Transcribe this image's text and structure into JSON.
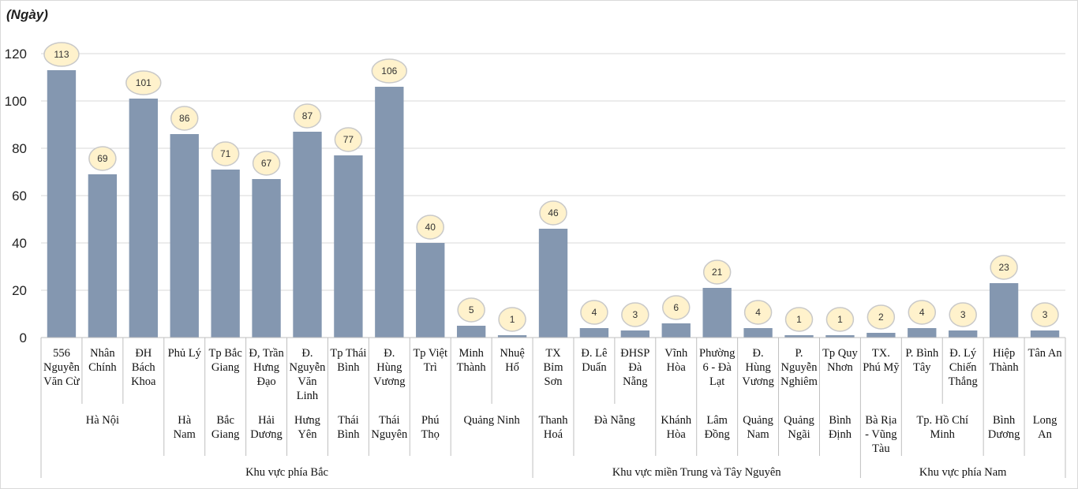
{
  "chart_data": {
    "type": "bar",
    "unit_label": "(Ngày)",
    "ylim": [
      0,
      120
    ],
    "yticks": [
      0,
      20,
      40,
      60,
      80,
      100,
      120
    ],
    "grid": true,
    "bar_color": "#8497b0",
    "label_bubble_fill": "#fff2cc",
    "label_bubble_stroke": "#c9c9c9",
    "categories": [
      [
        "556",
        "Nguyễn",
        "Văn Cừ"
      ],
      [
        "Nhân",
        "Chính"
      ],
      [
        "ĐH",
        "Bách",
        "Khoa"
      ],
      [
        "Phủ Lý"
      ],
      [
        "Tp Bắc",
        "Giang"
      ],
      [
        "Đ, Trần",
        "Hưng",
        "Đạo"
      ],
      [
        "Đ.",
        "Nguyễn",
        "Văn",
        "Linh"
      ],
      [
        "Tp Thái",
        "Bình"
      ],
      [
        "Đ.",
        "Hùng",
        "Vương"
      ],
      [
        "Tp Việt",
        "Trì"
      ],
      [
        "Minh",
        "Thành"
      ],
      [
        "Nhuệ",
        "Hổ"
      ],
      [
        "TX",
        "Bỉm",
        "Sơn"
      ],
      [
        "Đ. Lê",
        "Duẩn"
      ],
      [
        "ĐHSP",
        "Đà",
        "Nẵng"
      ],
      [
        "Vĩnh",
        "Hòa"
      ],
      [
        "Phường",
        "6 - Đà",
        "Lạt"
      ],
      [
        "Đ.",
        "Hùng",
        "Vương"
      ],
      [
        "P.",
        "Nguyễn",
        "Nghiêm"
      ],
      [
        "Tp Quy",
        "Nhơn"
      ],
      [
        "TX.",
        "Phú Mỹ"
      ],
      [
        "P. Bình",
        "Tây"
      ],
      [
        "Đ. Lý",
        "Chiến",
        "Thắng"
      ],
      [
        "Hiệp",
        "Thành"
      ],
      [
        "Tân An"
      ]
    ],
    "values": [
      113,
      69,
      101,
      86,
      71,
      67,
      87,
      77,
      106,
      40,
      5,
      1,
      46,
      4,
      3,
      6,
      21,
      4,
      1,
      1,
      2,
      4,
      3,
      23,
      3
    ],
    "provinces": [
      {
        "name": [
          "Hà Nội"
        ],
        "start": 0,
        "end": 2
      },
      {
        "name": [
          "Hà",
          "Nam"
        ],
        "start": 3,
        "end": 3
      },
      {
        "name": [
          "Bắc",
          "Giang"
        ],
        "start": 4,
        "end": 4
      },
      {
        "name": [
          "Hải",
          "Dương"
        ],
        "start": 5,
        "end": 5
      },
      {
        "name": [
          "Hưng",
          "Yên"
        ],
        "start": 6,
        "end": 6
      },
      {
        "name": [
          "Thái",
          "Bình"
        ],
        "start": 7,
        "end": 7
      },
      {
        "name": [
          "Thái",
          "Nguyên"
        ],
        "start": 8,
        "end": 8
      },
      {
        "name": [
          "Phú",
          "Thọ"
        ],
        "start": 9,
        "end": 9
      },
      {
        "name": [
          "Quảng Ninh"
        ],
        "start": 10,
        "end": 11
      },
      {
        "name": [
          "Thanh",
          "Hoá"
        ],
        "start": 12,
        "end": 12
      },
      {
        "name": [
          "Đà Nẵng"
        ],
        "start": 13,
        "end": 14
      },
      {
        "name": [
          "Khánh",
          "Hòa"
        ],
        "start": 15,
        "end": 15
      },
      {
        "name": [
          "Lâm",
          "Đồng"
        ],
        "start": 16,
        "end": 16
      },
      {
        "name": [
          "Quảng",
          "Nam"
        ],
        "start": 17,
        "end": 17
      },
      {
        "name": [
          "Quảng",
          "Ngãi"
        ],
        "start": 18,
        "end": 18
      },
      {
        "name": [
          "Bình",
          "Định"
        ],
        "start": 19,
        "end": 19
      },
      {
        "name": [
          "Bà Rịa",
          "- Vũng",
          "Tàu"
        ],
        "start": 20,
        "end": 20
      },
      {
        "name": [
          "Tp. Hồ Chí",
          "Minh"
        ],
        "start": 21,
        "end": 22
      },
      {
        "name": [
          "Bình",
          "Dương"
        ],
        "start": 23,
        "end": 23
      },
      {
        "name": [
          "Long",
          "An"
        ],
        "start": 24,
        "end": 24
      }
    ],
    "regions": [
      {
        "name": "Khu vực phía Bắc",
        "start": 0,
        "end": 11
      },
      {
        "name": "Khu vực miền Trung và Tây Nguyên",
        "start": 12,
        "end": 19
      },
      {
        "name": "Khu vực phía Nam",
        "start": 20,
        "end": 24
      }
    ]
  }
}
